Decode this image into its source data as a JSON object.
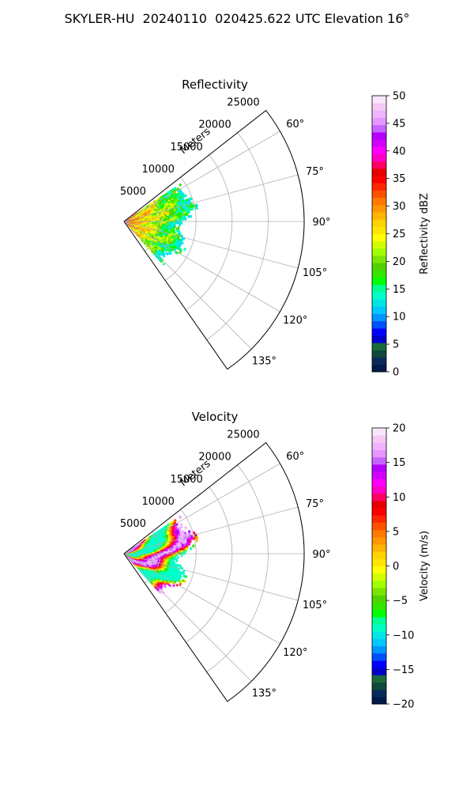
{
  "figure_title": "SKYLER-HU  20240110  020425.622 UTC Elevation 16°",
  "chart_data": [
    {
      "type": "heatmap",
      "projection": "polar-sector",
      "title": "Reflectivity",
      "radial_label": "Meters",
      "radial_ticks": [
        5000,
        10000,
        15000,
        20000,
        25000
      ],
      "radial_tick_labels": [
        "5000",
        "10000",
        "15000",
        "20000",
        "25000"
      ],
      "rlim": [
        0,
        25000
      ],
      "azimuth_ticks": [
        60,
        75,
        90,
        105,
        120,
        135
      ],
      "azimuth_tick_labels": [
        "60°",
        "75°",
        "90°",
        "105°",
        "120°",
        "135°"
      ],
      "azimuth_range": [
        52,
        145
      ],
      "grid": true,
      "data_extent": {
        "azimuth_min": 56,
        "azimuth_max": 138,
        "range_max_approx": 11500
      },
      "colorbar": {
        "label": "Reflectivity dBZ",
        "range": [
          0,
          50
        ],
        "ticks": [
          0,
          5,
          10,
          15,
          20,
          25,
          30,
          35,
          40,
          45,
          50
        ],
        "tick_labels": [
          "0",
          "5",
          "10",
          "15",
          "20",
          "25",
          "30",
          "35",
          "40",
          "45",
          "50"
        ],
        "colors": [
          "#001a4a",
          "#0a2a5a",
          "#0f4a3a",
          "#1a6a3a",
          "#0000c8",
          "#0000ff",
          "#0050ff",
          "#0096ff",
          "#00c8ff",
          "#00e6e6",
          "#00ffc8",
          "#00ff96",
          "#00ff00",
          "#32e600",
          "#50d200",
          "#78e600",
          "#a0ff00",
          "#d2ff00",
          "#ffff00",
          "#ffe600",
          "#ffd200",
          "#ffb400",
          "#ff9600",
          "#ff7800",
          "#ff5000",
          "#ff2800",
          "#ff0000",
          "#e60000",
          "#ff0064",
          "#ff00c8",
          "#ff00ff",
          "#d200ff",
          "#b400ff",
          "#c864ff",
          "#e696ff",
          "#f0b4ff",
          "#f5c8f5",
          "#fae6fa"
        ]
      }
    },
    {
      "type": "heatmap",
      "projection": "polar-sector",
      "title": "Velocity",
      "radial_label": "Meters",
      "radial_ticks": [
        5000,
        10000,
        15000,
        20000,
        25000
      ],
      "radial_tick_labels": [
        "5000",
        "10000",
        "15000",
        "20000",
        "25000"
      ],
      "rlim": [
        0,
        25000
      ],
      "azimuth_ticks": [
        60,
        75,
        90,
        105,
        120,
        135
      ],
      "azimuth_tick_labels": [
        "60°",
        "75°",
        "90°",
        "105°",
        "120°",
        "135°"
      ],
      "azimuth_range": [
        52,
        145
      ],
      "grid": true,
      "data_extent": {
        "azimuth_min": 56,
        "azimuth_max": 138,
        "range_max_approx": 11500
      },
      "colorbar": {
        "label": "Velocity (m/s)",
        "range": [
          -20,
          20
        ],
        "ticks": [
          -20,
          -15,
          -10,
          -5,
          0,
          5,
          10,
          15,
          20
        ],
        "tick_labels": [
          "−20",
          "−15",
          "−10",
          "−5",
          "0",
          "5",
          "10",
          "15",
          "20"
        ],
        "colors": [
          "#001a4a",
          "#0a2a5a",
          "#0f4a3a",
          "#1a6a3a",
          "#0000c8",
          "#0000ff",
          "#0050ff",
          "#0096ff",
          "#00c8ff",
          "#00e6e6",
          "#00ffc8",
          "#00ff96",
          "#00ff00",
          "#32e600",
          "#50d200",
          "#78e600",
          "#a0ff00",
          "#d2ff00",
          "#ffff00",
          "#ffe600",
          "#ffd200",
          "#ffb400",
          "#ff9600",
          "#ff7800",
          "#ff5000",
          "#ff2800",
          "#ff0000",
          "#e60000",
          "#ff0064",
          "#ff00c8",
          "#ff00ff",
          "#d200ff",
          "#b400ff",
          "#c864ff",
          "#e696ff",
          "#f0b4ff",
          "#f5c8f5",
          "#fae6fa"
        ]
      }
    }
  ]
}
